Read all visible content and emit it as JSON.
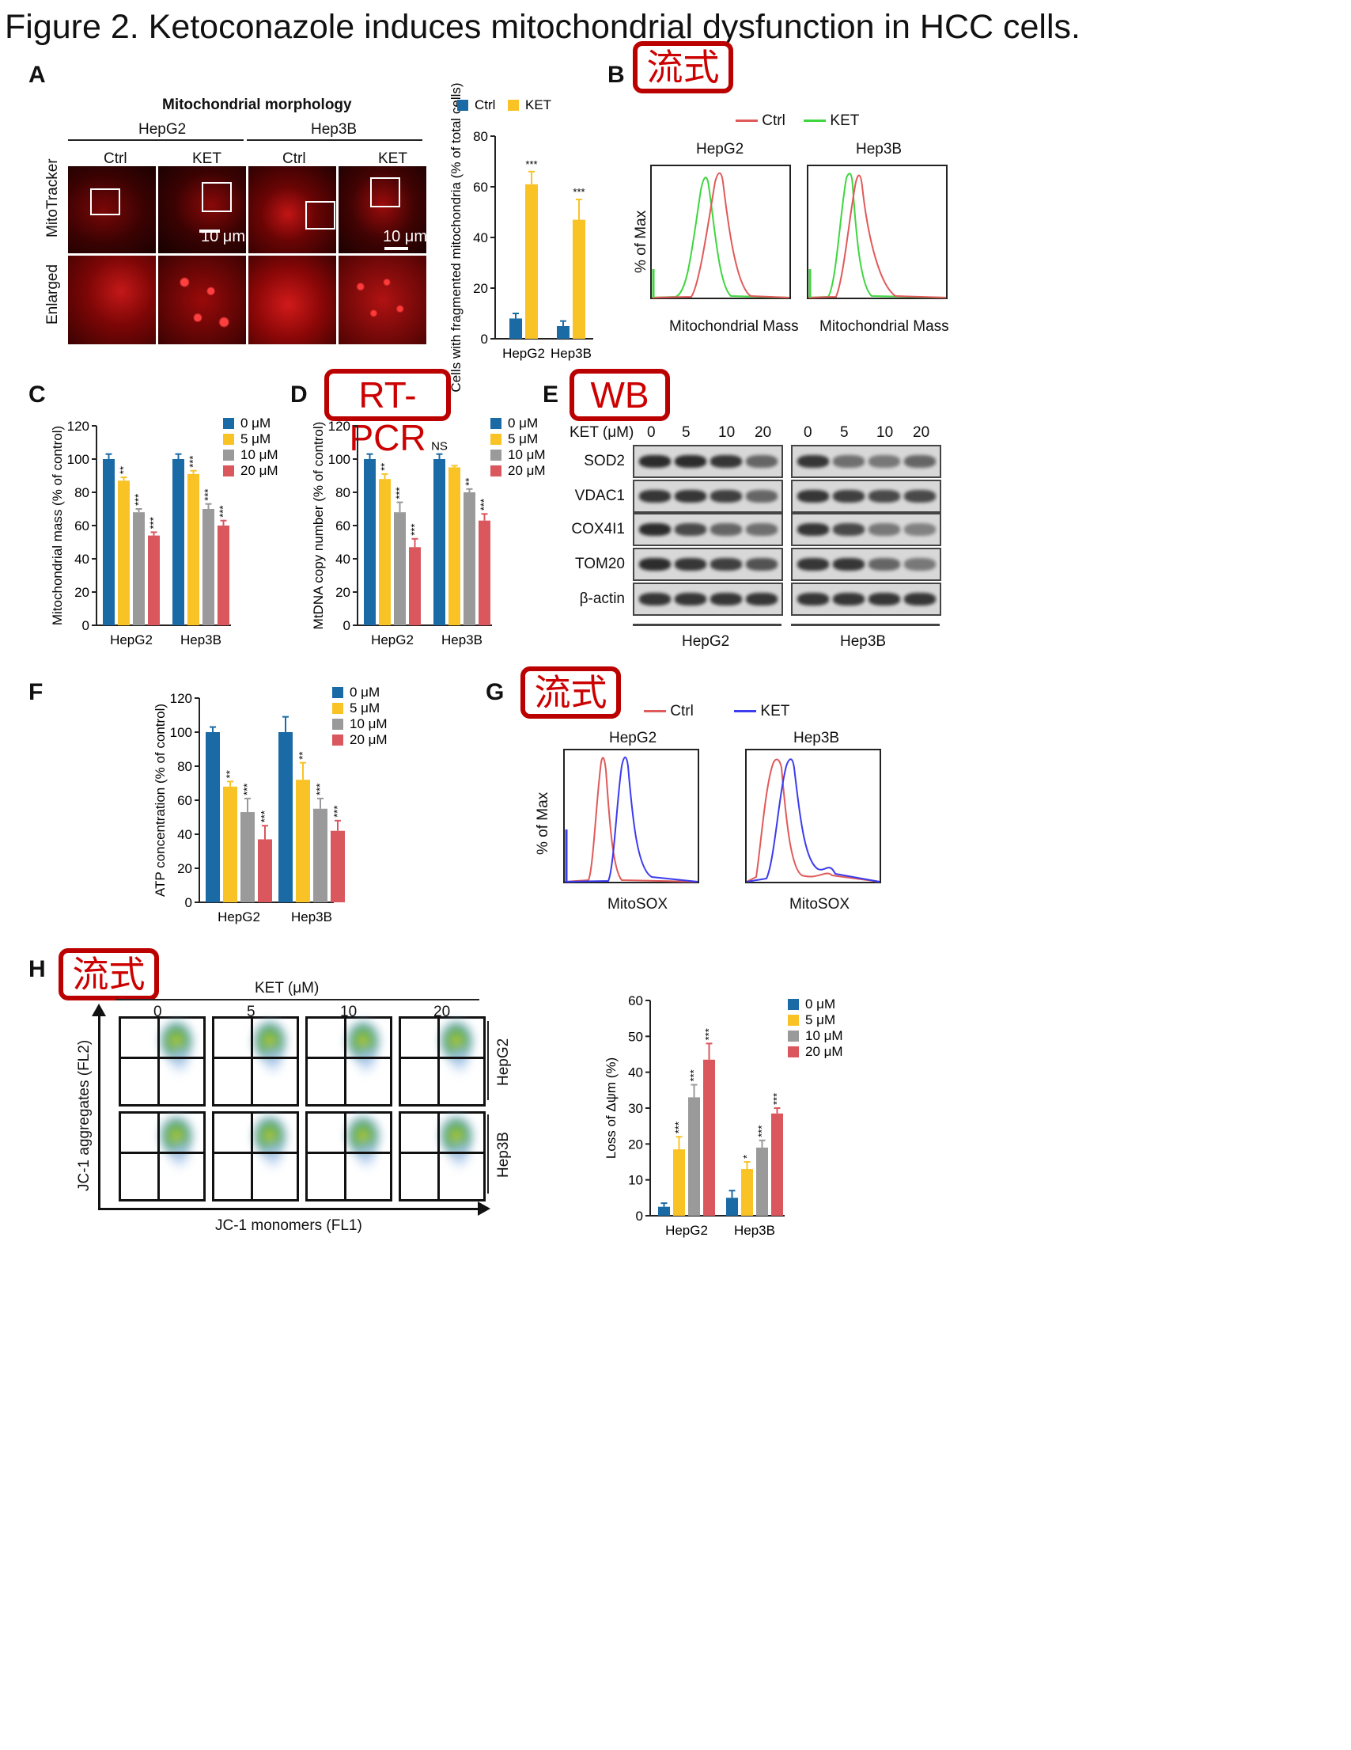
{
  "title": "Figure 2. Ketoconazole induces mitochondrial dysfunction in HCC cells.",
  "panel_labels": {
    "A": "A",
    "B": "B",
    "C": "C",
    "D": "D",
    "E": "E",
    "F": "F",
    "G": "G",
    "H": "H"
  },
  "tags": {
    "B": "流式",
    "D": "RT-PCR",
    "E": "WB",
    "G": "流式",
    "H": "流式"
  },
  "panelA": {
    "heading": "Mitochondrial morphology",
    "groups": [
      "HepG2",
      "Hep3B"
    ],
    "conditions": [
      "Ctrl",
      "KET",
      "Ctrl",
      "KET"
    ],
    "rows": [
      "MitoTracker",
      "Enlarged"
    ],
    "scalebar": "10 μm"
  },
  "panelB": {
    "legend": [
      "Ctrl",
      "KET"
    ],
    "cells": [
      "HepG2",
      "Hep3B"
    ],
    "ylabel": "% of Max",
    "xlabel": "Mitochondrial Mass",
    "colors": {
      "ctrl": "#e05a5a",
      "ket": "#3fd63f"
    }
  },
  "panelE": {
    "treatment_label": "KET (μM)",
    "doses": [
      "0",
      "5",
      "10",
      "20",
      "0",
      "5",
      "10",
      "20"
    ],
    "proteins": [
      "SOD2",
      "VDAC1",
      "COX4I1",
      "TOM20",
      "β-actin"
    ],
    "groups": [
      "HepG2",
      "Hep3B"
    ],
    "band_intensity": [
      [
        0.9,
        0.9,
        0.85,
        0.6,
        0.85,
        0.55,
        0.5,
        0.6
      ],
      [
        0.85,
        0.85,
        0.8,
        0.6,
        0.85,
        0.8,
        0.75,
        0.75
      ],
      [
        0.9,
        0.75,
        0.6,
        0.55,
        0.85,
        0.75,
        0.5,
        0.45
      ],
      [
        0.9,
        0.85,
        0.8,
        0.7,
        0.85,
        0.85,
        0.6,
        0.5
      ],
      [
        0.85,
        0.85,
        0.85,
        0.85,
        0.85,
        0.85,
        0.85,
        0.85
      ]
    ]
  },
  "panelG": {
    "legend": [
      "Ctrl",
      "KET"
    ],
    "cells": [
      "HepG2",
      "Hep3B"
    ],
    "ylabel": "% of Max",
    "xlabel": "MitoSOX",
    "colors": {
      "ctrl": "#e05a5a",
      "ket": "#3b3bef"
    }
  },
  "panelH": {
    "treatment_label": "KET (μM)",
    "doses": [
      "0",
      "5",
      "10",
      "20"
    ],
    "cells": [
      "HepG2",
      "Hep3B"
    ],
    "ylabel": "JC-1 aggregates (FL2)",
    "xlabel": "JC-1 monomers (FL1)"
  },
  "chart_data": [
    {
      "id": "A-bar",
      "type": "bar",
      "title": "",
      "categories": [
        "HepG2",
        "Hep3B"
      ],
      "series": [
        {
          "name": "Ctrl",
          "values": [
            8,
            5
          ],
          "errors": [
            2,
            2
          ],
          "stars": [
            "",
            ""
          ]
        },
        {
          "name": "KET",
          "values": [
            61,
            47
          ],
          "errors": [
            5,
            8
          ],
          "stars": [
            "***",
            "***"
          ]
        }
      ],
      "ylabel": "Cells with fragmented mitochondria (% of total cells)",
      "xlabel": "",
      "ylim": [
        0,
        80
      ],
      "yticks": [
        0,
        20,
        40,
        60,
        80
      ],
      "colors": [
        "#1a6aa5",
        "#f9c326"
      ],
      "legend": "top"
    },
    {
      "id": "C",
      "type": "bar",
      "categories": [
        "HepG2",
        "Hep3B"
      ],
      "series": [
        {
          "name": "0 μM",
          "values": [
            100,
            100
          ],
          "errors": [
            3,
            3
          ],
          "stars": [
            "",
            ""
          ]
        },
        {
          "name": "5 μM",
          "values": [
            87,
            91
          ],
          "errors": [
            2,
            2
          ],
          "stars": [
            "**",
            "***"
          ]
        },
        {
          "name": "10 μM",
          "values": [
            68,
            70
          ],
          "errors": [
            2,
            3
          ],
          "stars": [
            "***",
            "***"
          ]
        },
        {
          "name": "20 μM",
          "values": [
            54,
            60
          ],
          "errors": [
            2,
            3
          ],
          "stars": [
            "***",
            "***"
          ]
        }
      ],
      "ylabel": "Mitochondrial mass (% of control)",
      "ylim": [
        0,
        120
      ],
      "yticks": [
        0,
        20,
        40,
        60,
        80,
        100,
        120
      ],
      "colors": [
        "#1a6aa5",
        "#f9c326",
        "#9a9a9a",
        "#d9575d"
      ],
      "legend": "top-right"
    },
    {
      "id": "D",
      "type": "bar",
      "categories": [
        "HepG2",
        "Hep3B"
      ],
      "series": [
        {
          "name": "0 μM",
          "values": [
            100,
            100
          ],
          "errors": [
            3,
            3
          ],
          "stars": [
            "",
            "NS"
          ]
        },
        {
          "name": "5 μM",
          "values": [
            88,
            95
          ],
          "errors": [
            3,
            1
          ],
          "stars": [
            "**",
            ""
          ]
        },
        {
          "name": "10 μM",
          "values": [
            68,
            80
          ],
          "errors": [
            6,
            2
          ],
          "stars": [
            "***",
            "**"
          ]
        },
        {
          "name": "20 μM",
          "values": [
            47,
            63
          ],
          "errors": [
            5,
            4
          ],
          "stars": [
            "***",
            "***"
          ]
        }
      ],
      "ylabel": "MtDNA copy number (% of control)",
      "ylim": [
        0,
        120
      ],
      "yticks": [
        0,
        20,
        40,
        60,
        80,
        100,
        120
      ],
      "colors": [
        "#1a6aa5",
        "#f9c326",
        "#9a9a9a",
        "#d9575d"
      ],
      "legend": "top-right"
    },
    {
      "id": "F",
      "type": "bar",
      "categories": [
        "HepG2",
        "Hep3B"
      ],
      "series": [
        {
          "name": "0 μM",
          "values": [
            100,
            100
          ],
          "errors": [
            3,
            9
          ],
          "stars": [
            "",
            ""
          ]
        },
        {
          "name": "5 μM",
          "values": [
            68,
            72
          ],
          "errors": [
            3,
            10
          ],
          "stars": [
            "**",
            "**"
          ]
        },
        {
          "name": "10 μM",
          "values": [
            53,
            55
          ],
          "errors": [
            8,
            6
          ],
          "stars": [
            "***",
            "***"
          ]
        },
        {
          "name": "20 μM",
          "values": [
            37,
            42
          ],
          "errors": [
            8,
            6
          ],
          "stars": [
            "***",
            "***"
          ]
        }
      ],
      "ylabel": "ATP concentration (% of control)",
      "ylim": [
        0,
        120
      ],
      "yticks": [
        0,
        20,
        40,
        60,
        80,
        100,
        120
      ],
      "colors": [
        "#1a6aa5",
        "#f9c326",
        "#9a9a9a",
        "#d9575d"
      ],
      "legend": "top-right"
    },
    {
      "id": "H-bar",
      "type": "bar",
      "categories": [
        "HepG2",
        "Hep3B"
      ],
      "series": [
        {
          "name": "0 μM",
          "values": [
            2.5,
            5
          ],
          "errors": [
            1,
            2
          ],
          "stars": [
            "",
            ""
          ]
        },
        {
          "name": "5 μM",
          "values": [
            18.5,
            13
          ],
          "errors": [
            3.5,
            2
          ],
          "stars": [
            "***",
            "*"
          ]
        },
        {
          "name": "10 μM",
          "values": [
            33,
            19
          ],
          "errors": [
            3.5,
            2
          ],
          "stars": [
            "***",
            "***"
          ]
        },
        {
          "name": "20 μM",
          "values": [
            43.5,
            28.5
          ],
          "errors": [
            4.5,
            1.5
          ],
          "stars": [
            "***",
            "***"
          ]
        }
      ],
      "ylabel": "Loss of Δψm (%)",
      "ylim": [
        0,
        60
      ],
      "yticks": [
        0,
        10,
        20,
        30,
        40,
        50,
        60
      ],
      "colors": [
        "#1a6aa5",
        "#f9c326",
        "#9a9a9a",
        "#d9575d"
      ],
      "legend": "top-right"
    }
  ]
}
